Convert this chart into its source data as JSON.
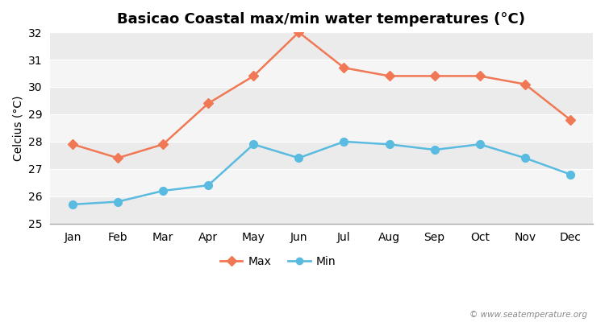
{
  "months": [
    "Jan",
    "Feb",
    "Mar",
    "Apr",
    "May",
    "Jun",
    "Jul",
    "Aug",
    "Sep",
    "Oct",
    "Nov",
    "Dec"
  ],
  "max_temps": [
    27.9,
    27.4,
    27.9,
    29.4,
    30.4,
    32.0,
    30.7,
    30.4,
    30.4,
    30.4,
    30.1,
    28.8
  ],
  "min_temps": [
    25.7,
    25.8,
    26.2,
    26.4,
    27.9,
    27.4,
    28.0,
    27.9,
    27.7,
    27.9,
    27.4,
    26.8
  ],
  "max_color": "#f07855",
  "min_color": "#5abbe0",
  "bg_color": "#ffffff",
  "plot_bg_color": "#ffffff",
  "band_colors": [
    "#ebebeb",
    "#f5f5f5"
  ],
  "title": "Basicao Coastal max/min water temperatures (°C)",
  "ylabel": "Celcius (°C)",
  "ylim": [
    25,
    32
  ],
  "yticks": [
    25,
    26,
    27,
    28,
    29,
    30,
    31,
    32
  ],
  "legend_labels": [
    "Max",
    "Min"
  ],
  "watermark": "© www.seatemperature.org",
  "title_fontsize": 13,
  "label_fontsize": 10,
  "tick_fontsize": 10
}
